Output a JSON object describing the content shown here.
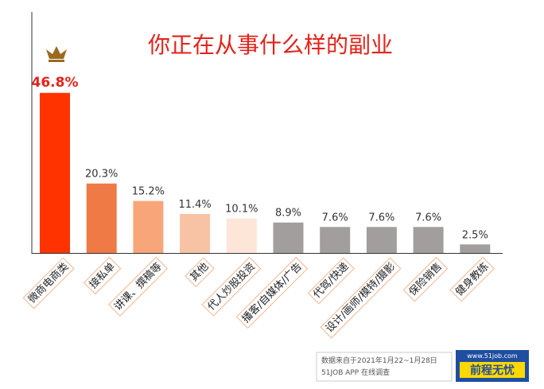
{
  "chart_data": {
    "type": "bar",
    "title": "你正在从事什么样的副业",
    "categories": [
      "微商电商类",
      "接私单",
      "讲课、撰稿等",
      "其他",
      "代人炒股投资",
      "播客/自媒体/广告",
      "代驾/快递",
      "设计/画师/模特/摄影",
      "保险销售",
      "健身教练"
    ],
    "values": [
      46.8,
      20.3,
      15.2,
      11.4,
      10.1,
      8.9,
      7.6,
      7.6,
      7.6,
      2.5
    ],
    "value_labels": [
      "46.8%",
      "20.3%",
      "15.2%",
      "11.4%",
      "10.1%",
      "8.9%",
      "7.6%",
      "7.6%",
      "7.6%",
      "2.5%"
    ],
    "colors": [
      "#ff3300",
      "#ef7a45",
      "#f9a57a",
      "#f8c3a4",
      "#fde6d8",
      "#a29e9e",
      "#a29e9e",
      "#a29e9e",
      "#a29e9e",
      "#a29e9e"
    ],
    "source": [
      "数据来自于2021年1月22~1月28日",
      "51JOB APP 在线调查"
    ],
    "logo": {
      "url": "www.51job.com",
      "name": "前程无忧"
    }
  }
}
